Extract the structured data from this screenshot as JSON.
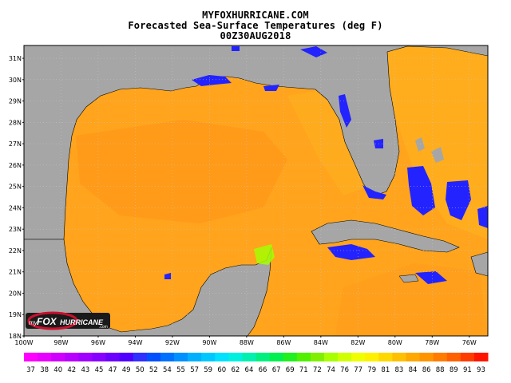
{
  "header": {
    "site": "MYFOXHURRICANE.COM",
    "product": "Forecasted Sea-Surface Temperatures (deg F)",
    "valid_time": "00Z30AUG2018"
  },
  "map": {
    "lat_labels": [
      "31N",
      "30N",
      "29N",
      "28N",
      "27N",
      "26N",
      "25N",
      "24N",
      "23N",
      "22N",
      "21N",
      "20N",
      "19N",
      "18N"
    ],
    "lon_labels": [
      "100W",
      "98W",
      "96W",
      "94W",
      "92W",
      "90W",
      "88W",
      "86W",
      "84W",
      "82W",
      "80W",
      "78W",
      "76W"
    ],
    "lat_range": [
      18,
      31.6
    ],
    "lon_range": [
      -100,
      -75
    ],
    "colors": {
      "land": "#a6a6a6",
      "warm_water": "#ffa41c",
      "hot_water": "#ff8a14",
      "cool_water": "#ffc21e",
      "coastal_cool": "#2323ff",
      "yucatan_green": "#a4ff00",
      "grid": "#c8c8c8"
    }
  },
  "logo": {
    "brand_prefix": "my",
    "brand_main": "FOX",
    "brand_suffix": "HURRICANE",
    "brand_tld": ".com"
  },
  "colorbar": {
    "labels": [
      "37",
      "38",
      "40",
      "42",
      "43",
      "45",
      "47",
      "49",
      "50",
      "52",
      "54",
      "55",
      "57",
      "59",
      "60",
      "62",
      "64",
      "66",
      "67",
      "69",
      "71",
      "72",
      "74",
      "76",
      "77",
      "79",
      "81",
      "83",
      "84",
      "86",
      "88",
      "89",
      "91",
      "93"
    ],
    "colors": [
      "#ff00ff",
      "#e800ff",
      "#d000ff",
      "#b800ff",
      "#a000ff",
      "#8800ff",
      "#6c00ff",
      "#5000ff",
      "#3030ff",
      "#0050ff",
      "#0070ff",
      "#0090ff",
      "#00b0ff",
      "#00c8ff",
      "#00e0ff",
      "#00f0e0",
      "#00f0b0",
      "#00f080",
      "#00f050",
      "#20f020",
      "#50f000",
      "#80f000",
      "#a8ff00",
      "#d0ff00",
      "#f0ff00",
      "#fff000",
      "#ffd800",
      "#ffc000",
      "#ffa800",
      "#ff9400",
      "#ff7c00",
      "#ff6000",
      "#ff3c00",
      "#ff1400"
    ]
  }
}
